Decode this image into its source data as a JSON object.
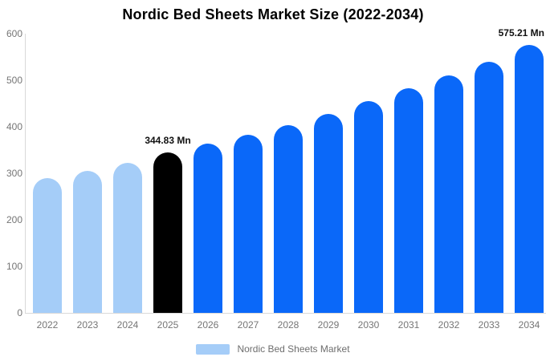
{
  "title": "Nordic Bed Sheets Market Size (2022-2034)",
  "chart_data": {
    "type": "bar",
    "title": "Nordic Bed Sheets Market Size (2022-2034)",
    "categories": [
      "2022",
      "2023",
      "2024",
      "2025",
      "2026",
      "2027",
      "2028",
      "2029",
      "2030",
      "2031",
      "2032",
      "2033",
      "2034"
    ],
    "values": [
      290,
      305,
      323,
      344.83,
      363,
      383,
      404,
      428,
      455,
      482,
      510,
      540,
      575.21
    ],
    "bar_colors": [
      "historical",
      "historical",
      "historical",
      "highlight",
      "forecast",
      "forecast",
      "forecast",
      "forecast",
      "forecast",
      "forecast",
      "forecast",
      "forecast",
      "forecast"
    ],
    "annotations": [
      {
        "category": "2025",
        "text": "344.83 Mn"
      },
      {
        "category": "2034",
        "text": "575.21 Mn"
      }
    ],
    "xlabel": "",
    "ylabel": "",
    "ylim": [
      0,
      600
    ],
    "yticks": [
      0,
      100,
      200,
      300,
      400,
      500,
      600
    ],
    "grid": false,
    "legend_position": "bottom"
  },
  "legend": {
    "label": "Nordic Bed Sheets Market"
  },
  "colors": {
    "historical": "#a5cdf8",
    "highlight": "#000000",
    "forecast": "#0a68f9",
    "axis_text": "#757575",
    "axis_line": "#d9d9d9",
    "annotation_text": "#111111",
    "title_text": "#000000",
    "legend_text": "#6e6e6e",
    "background": "#ffffff"
  }
}
